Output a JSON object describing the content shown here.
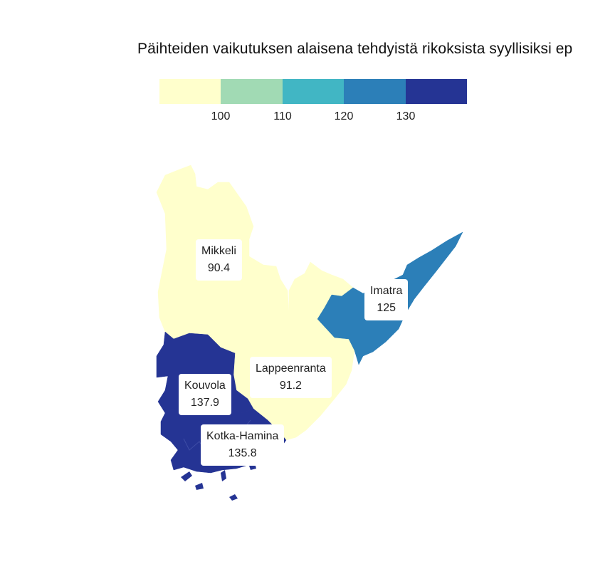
{
  "title": "Päihteiden vaikutuksen alaisena tehdyistä rikoksista syyllisiksi ep",
  "legend": {
    "colors": [
      "#ffffcc",
      "#a1dab4",
      "#41b6c4",
      "#2c7fb8",
      "#253494"
    ],
    "ticks": [
      "100",
      "110",
      "120",
      "130"
    ]
  },
  "regions": [
    {
      "name": "Mikkeli",
      "value": "90.4",
      "color": "#ffffcc"
    },
    {
      "name": "Imatra",
      "value": "125",
      "color": "#2c7fb8"
    },
    {
      "name": "Lappeenranta",
      "value": "91.2",
      "color": "#ffffcc"
    },
    {
      "name": "Kouvola",
      "value": "137.9",
      "color": "#253494"
    },
    {
      "name": "Kotka-Hamina",
      "value": "135.8",
      "color": "#253494"
    }
  ]
}
